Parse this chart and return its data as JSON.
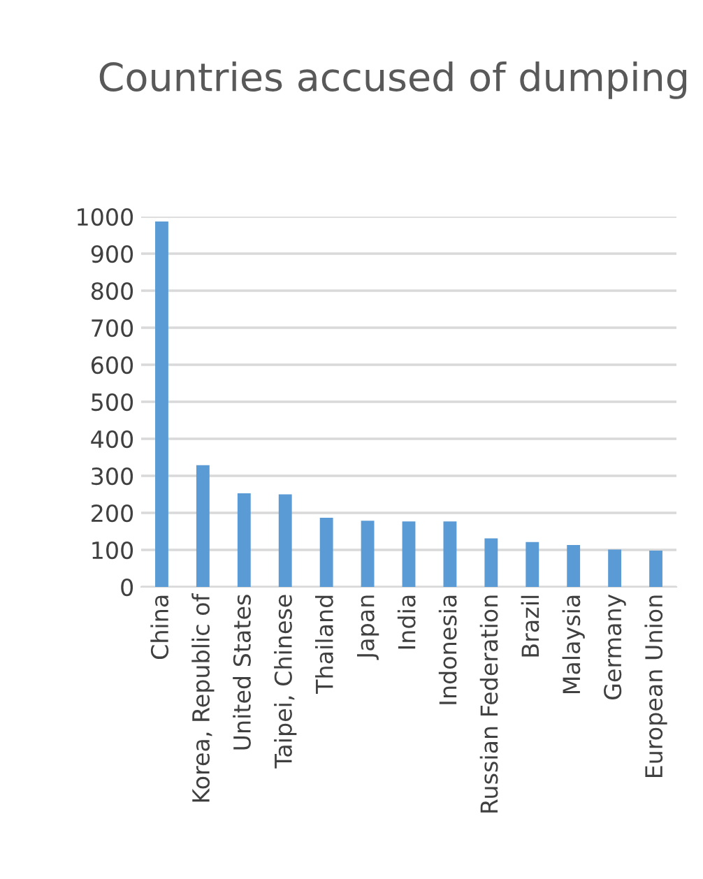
{
  "chart_data": {
    "type": "bar",
    "title": "Countries accused of dumping",
    "categories": [
      "China",
      "Korea, Republic of",
      "United States",
      "Taipei, Chinese",
      "Thailand",
      "Japan",
      "India",
      "Indonesia",
      "Russian Federation",
      "Brazil",
      "Malaysia",
      "Germany",
      "European Union"
    ],
    "values": [
      987,
      329,
      253,
      250,
      187,
      179,
      177,
      177,
      131,
      121,
      113,
      101,
      98
    ],
    "color": "#5b9bd5",
    "ylim": [
      0,
      1000
    ],
    "yticks": [
      0,
      100,
      200,
      300,
      400,
      500,
      600,
      700,
      800,
      900,
      1000
    ],
    "grid": "y"
  }
}
